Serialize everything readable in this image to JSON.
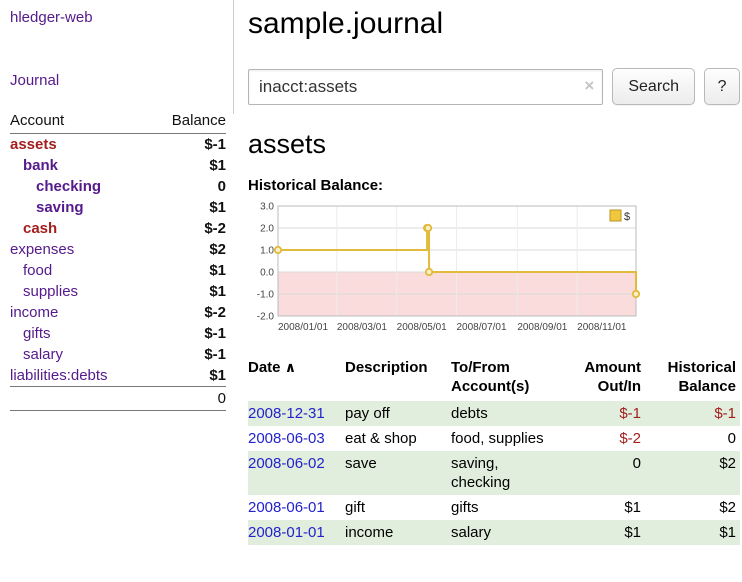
{
  "app": {
    "name": "hledger-web"
  },
  "sidebar": {
    "journal_link": "Journal",
    "accounts": {
      "header": {
        "account": "Account",
        "balance": "Balance"
      },
      "rows": [
        {
          "name": "assets",
          "balance": "$-1",
          "indent": 0,
          "name_style": "negative bold",
          "balance_style": "negative"
        },
        {
          "name": "bank",
          "balance": "$1",
          "indent": 1,
          "name_style": "bold",
          "balance_style": ""
        },
        {
          "name": "checking",
          "balance": "0",
          "indent": 2,
          "name_style": "bold",
          "balance_style": ""
        },
        {
          "name": "saving",
          "balance": "$1",
          "indent": 2,
          "name_style": "bold",
          "balance_style": ""
        },
        {
          "name": "cash",
          "balance": "$-2",
          "indent": 1,
          "name_style": "negative bold",
          "balance_style": "negative"
        },
        {
          "name": "expenses",
          "balance": "$2",
          "indent": 0,
          "name_style": "",
          "balance_style": ""
        },
        {
          "name": "food",
          "balance": "$1",
          "indent": 1,
          "name_style": "",
          "balance_style": ""
        },
        {
          "name": "supplies",
          "balance": "$1",
          "indent": 1,
          "name_style": "",
          "balance_style": ""
        },
        {
          "name": "income",
          "balance": "$-2",
          "indent": 0,
          "name_style": "",
          "balance_style": "negative-dim"
        },
        {
          "name": "gifts",
          "balance": "$-1",
          "indent": 1,
          "name_style": "",
          "balance_style": "negative-dim"
        },
        {
          "name": "salary",
          "balance": "$-1",
          "indent": 1,
          "name_style": "",
          "balance_style": "negative-dim"
        },
        {
          "name": "liabilities:debts",
          "balance": "$1",
          "indent": 0,
          "name_style": "",
          "balance_style": ""
        }
      ],
      "total": "0"
    }
  },
  "main": {
    "title": "sample.journal",
    "search": {
      "value": "inacct:assets",
      "clear_icon": "×",
      "search_button": "Search",
      "help_button": "?"
    },
    "account_heading": "assets",
    "chart_title": "Historical Balance:"
  },
  "chart_data": {
    "type": "line",
    "step": true,
    "title": "Historical Balance",
    "xrange": [
      "2008-01-01",
      "2008-12-31"
    ],
    "ylim": [
      -2.0,
      3.0
    ],
    "yticks": [
      3.0,
      2.0,
      1.0,
      0.0,
      -1.0,
      -2.0
    ],
    "xticks": [
      {
        "label": "2008/01/01",
        "date": "2008-01-01"
      },
      {
        "label": "2008/03/01",
        "date": "2008-03-01"
      },
      {
        "label": "2008/05/01",
        "date": "2008-05-01"
      },
      {
        "label": "2008/07/01",
        "date": "2008-07-01"
      },
      {
        "label": "2008/09/01",
        "date": "2008-09-01"
      },
      {
        "label": "2008/11/01",
        "date": "2008-11-01"
      }
    ],
    "series": [
      {
        "name": "$",
        "color": "#e2ba3c",
        "marker_fill": "#faf0c8",
        "points": [
          {
            "x": "2008-01-01",
            "y": 1
          },
          {
            "x": "2008-06-01",
            "y": 2
          },
          {
            "x": "2008-06-02",
            "y": 2
          },
          {
            "x": "2008-06-03",
            "y": 0
          },
          {
            "x": "2008-12-31",
            "y": -1
          }
        ]
      }
    ],
    "negative_region_color": "#fadcdc",
    "grid": true,
    "legend": {
      "position": "top-right",
      "label": "$",
      "swatch_color": "#f0c83e",
      "swatch_border": "#b89323"
    }
  },
  "register": {
    "headers": {
      "date": "Date",
      "sort_indicator": "∧",
      "description": "Description",
      "account": "To/From Account(s)",
      "amount": "Amount Out/In",
      "balance": "Historical Balance"
    },
    "rows": [
      {
        "date": "2008-12-31",
        "description": "pay off",
        "account": "debts",
        "amount": "$-1",
        "amount_negative": true,
        "balance": "$-1",
        "balance_negative": true,
        "shaded": true
      },
      {
        "date": "2008-06-03",
        "description": "eat & shop",
        "account": "food, supplies",
        "amount": "$-2",
        "amount_negative": true,
        "balance": "0",
        "balance_negative": false,
        "shaded": false
      },
      {
        "date": "2008-06-02",
        "description": "save",
        "account": "saving, checking",
        "amount": "0",
        "amount_negative": false,
        "balance": "$2",
        "balance_negative": false,
        "shaded": true
      },
      {
        "date": "2008-06-01",
        "description": "gift",
        "account": "gifts",
        "amount": "$1",
        "amount_negative": false,
        "balance": "$2",
        "balance_negative": false,
        "shaded": false
      },
      {
        "date": "2008-01-01",
        "description": "income",
        "account": "salary",
        "amount": "$1",
        "amount_negative": false,
        "balance": "$1",
        "balance_negative": false,
        "shaded": true
      }
    ]
  },
  "colors": {
    "link_purple": "#551a8b",
    "date_link_blue": "#2222cc",
    "negative_strong": "#a31f1f",
    "negative_dim": "#c98f8f",
    "shaded_row_green": "#e1eedd"
  }
}
